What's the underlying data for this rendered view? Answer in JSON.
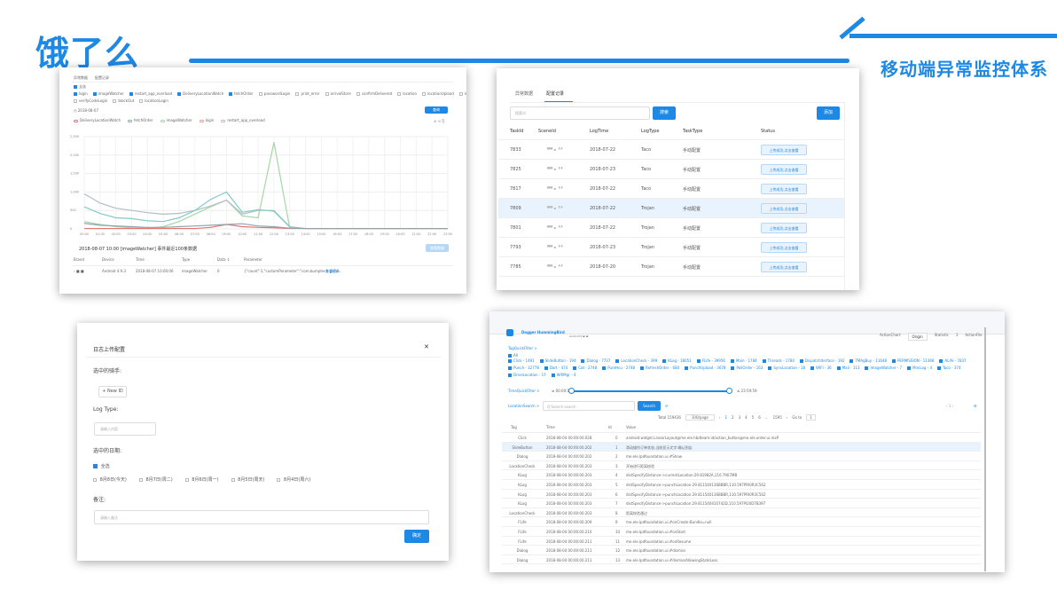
{
  "brand": {
    "logo_text": "饿了么",
    "title": "移动端异常监控体系",
    "accent": "#1e88e5"
  },
  "card1": {
    "tabs": [
      "异常数据",
      "配置记录"
    ],
    "filters_row1": [
      "全选"
    ],
    "filters_row2": [
      "login",
      "imageWatcher",
      "restart_app_overload",
      "DeliveryLocationWatch",
      "fetchOrder",
      "passwordLogin",
      "print_error",
      "arrivalStore",
      "confirmDelivered",
      "location",
      "locationUpload",
      "locationDevice"
    ],
    "filters_row3": [
      "verifyCodeLogin",
      "blockOut",
      "locationLogin"
    ],
    "date_label": "2018-08-07",
    "btn_query": "查询",
    "legend": [
      "DeliveryLocationWatch",
      "fetchOrder",
      "imageWatcher",
      "login",
      "restart_app_overload"
    ],
    "y_ticks": [
      "2,500",
      "2,000",
      "1,500",
      "1,000",
      "500",
      "0"
    ],
    "x_ticks": [
      "00:00",
      "01:00",
      "02:00",
      "03:00",
      "04:00",
      "05:00",
      "06:00",
      "07:00",
      "08:00",
      "09:00",
      "10:00",
      "11:00",
      "12:00",
      "13:00",
      "14:00",
      "15:00",
      "16:00",
      "17:00",
      "18:00",
      "19:00",
      "20:00",
      "21:00",
      "22:00",
      "23:00"
    ],
    "detail_title": "2018-08-07 10:00 [imageWatcher] 事件最近100条数据",
    "detail_btn": "查看数据",
    "columns": [
      "Brand",
      "Device",
      "Time",
      "Type",
      "Data ↕",
      "Parameter"
    ],
    "row": [
      "Android 4.9.3",
      "2018-08-07 10:00:06",
      "imageWatcher",
      "0",
      "{\"count\":1,\"customParameter\":\"com.bumptech.glide...",
      "查看更多"
    ]
  },
  "card2": {
    "tabs": [
      "异常数据",
      "配置记录"
    ],
    "search_placeholder": "搜索id",
    "btn_search": "搜索",
    "btn_add": "添加",
    "columns": [
      "TaskId",
      "SceneId",
      "LogTime",
      "LogType",
      "TaskType",
      "Status"
    ],
    "rows": [
      {
        "id": "7833",
        "date": "2018-07-22",
        "type": "Taco",
        "task": "手动配置",
        "status": "上传成功,点击查看"
      },
      {
        "id": "7825",
        "date": "2018-07-23",
        "type": "Taco",
        "task": "手动配置",
        "status": "上传成功,点击查看"
      },
      {
        "id": "7817",
        "date": "2018-07-22",
        "type": "Taco",
        "task": "手动配置",
        "status": "上传成功,点击查看"
      },
      {
        "id": "7809",
        "date": "2018-07-22",
        "type": "Trojan",
        "task": "手动配置",
        "status": "上传成功,点击查看"
      },
      {
        "id": "7801",
        "date": "2018-07-22",
        "type": "Trojan",
        "task": "手动配置",
        "status": "上传成功,点击查看"
      },
      {
        "id": "7793",
        "date": "2018-07-23",
        "type": "Trojan",
        "task": "手动配置",
        "status": "上传成功,点击查看"
      },
      {
        "id": "7785",
        "date": "2018-07-20",
        "type": "Trojan",
        "task": "手动配置",
        "status": "上传成功,点击查看"
      }
    ]
  },
  "card3": {
    "title": "日志上传配置",
    "close": "✕",
    "rider_label": "选中的骑手:",
    "new_id": "+ New ID",
    "logtype_label": "Log Type:",
    "logtype_placeholder": "请输入内容",
    "date_label": "选中的日期:",
    "select_all": "全选",
    "dates": [
      "8月8日(今天)",
      "8月7日(周二)",
      "8月6日(周一)",
      "8月5日(周天)",
      "8月4日(周六)"
    ],
    "note_label": "备注:",
    "note_placeholder": "请输入备注",
    "confirm": "确定"
  },
  "card4": {
    "app": "Dogger HummingBird",
    "env": "Android ▾",
    "tabs": [
      "ActionChart",
      "Origin",
      "Statistic",
      "1",
      "ActionFile"
    ],
    "tag_filter": "TagQuickFilter >",
    "all": "All",
    "tags": [
      "Click - 1491",
      "SlideButton - 194",
      "Dialog - 7737",
      "LocationCheck - 399",
      "KLog - 18051",
      "FLife - 39956",
      "Main - 1784",
      "Threads - 1784",
      "DispatchIterface - 192",
      "TMAgBuy - 11648",
      "PERMISSION - 11368",
      "ALife - 7837",
      "Punch - 12778",
      "Dart - 474",
      "Cat - 2748",
      "PureHcu - 2748",
      "RefreshOrder - 680",
      "PunchUpload - 3678",
      "PoilOrder - 163",
      "SyncLocation - 18",
      "WIFI - 36",
      "Mail - 113",
      "ImageWatcher - 7",
      "MiniLog - 4",
      "Taco - 374",
      "DriveLocation - 17",
      "WifiMgr - 4"
    ],
    "time_filter": "TimeQuickFilter >",
    "time_start": "≥ 00:00:00",
    "time_end": "≤ 23:59:59",
    "loc_search": "LocationSearch >",
    "search_placeholder": "Q Search search",
    "search_btn": "Search",
    "pager": {
      "total": "Total 159436",
      "size": "100/page",
      "pages": [
        "1",
        "2",
        "3",
        "4",
        "5",
        "6",
        "...",
        "1595"
      ],
      "goto": "Go to",
      "goto_val": "1"
    },
    "columns": [
      "Tag",
      "Time",
      "Id",
      "Value"
    ],
    "rows": [
      {
        "tag": "Click",
        "time": "2018-08-04 00:00:00.028",
        "id": "0",
        "value": "android.widget.LinearLayout@me.ele.hbdteam:id/action_button@me.ele.order.ui.mxP"
      },
      {
        "tag": "SlideButton",
        "time": "2018-08-04 00:00:00.202",
        "id": "1",
        "value": "滑动操作订单状态,当前显示文字:确认到店"
      },
      {
        "tag": "Dialog",
        "time": "2018-08-04 00:00:00.202",
        "id": "2",
        "value": "me.ele.lpdfoundation.ui.#Show"
      },
      {
        "tag": "LocationCheck",
        "time": "2018-08-04 00:00:00.203",
        "id": "3",
        "value": "开始进行距离校验"
      },
      {
        "tag": "KLog",
        "time": "2018-08-04 00:00:00.203",
        "id": "4",
        "value": "distSpecifyDistance->currentLocation:29.81982A,110.7907MB"
      },
      {
        "tag": "KLog",
        "time": "2018-08-04 00:00:00.203",
        "id": "5",
        "value": "distSpecifyDistance->punchLocation:29.811540136BBBR,110.597PRI0R3C562"
      },
      {
        "tag": "KLog",
        "time": "2018-08-04 00:00:00.203",
        "id": "6",
        "value": "distSpecifyDistance->punchLocation:29.811540136BBBR,110.597PRI0R3C562"
      },
      {
        "tag": "KLog",
        "time": "2018-08-04 00:00:00.203",
        "id": "7",
        "value": "distSpecifyDistance->punchLocation:29.811540410742D,110.597PI20D7B397"
      },
      {
        "tag": "LocationCheck",
        "time": "2018-08-04 00:00:00.203",
        "id": "8",
        "value": "距离校验通过"
      },
      {
        "tag": "FLife",
        "time": "2018-08-04 00:00:00.209",
        "id": "9",
        "value": "me.ele.lpdfoundation.ui.#onCreate:Bundle=null"
      },
      {
        "tag": "FLife",
        "time": "2018-08-04 00:00:00.210",
        "id": "10",
        "value": "me.ele.lpdfoundation.ui.#onStart"
      },
      {
        "tag": "FLife",
        "time": "2018-08-04 00:00:00.211",
        "id": "11",
        "value": "me.ele.lpdfoundation.ui.#onResume"
      },
      {
        "tag": "Dialog",
        "time": "2018-08-04 00:00:00.211",
        "id": "12",
        "value": "me.ele.lpdfoundation.ui.#dismiss"
      },
      {
        "tag": "Dialog",
        "time": "2018-08-04 00:00:00.211",
        "id": "13",
        "value": "me.ele.lpdfoundation.ui.#dismissAllowingStateLoss"
      }
    ]
  }
}
